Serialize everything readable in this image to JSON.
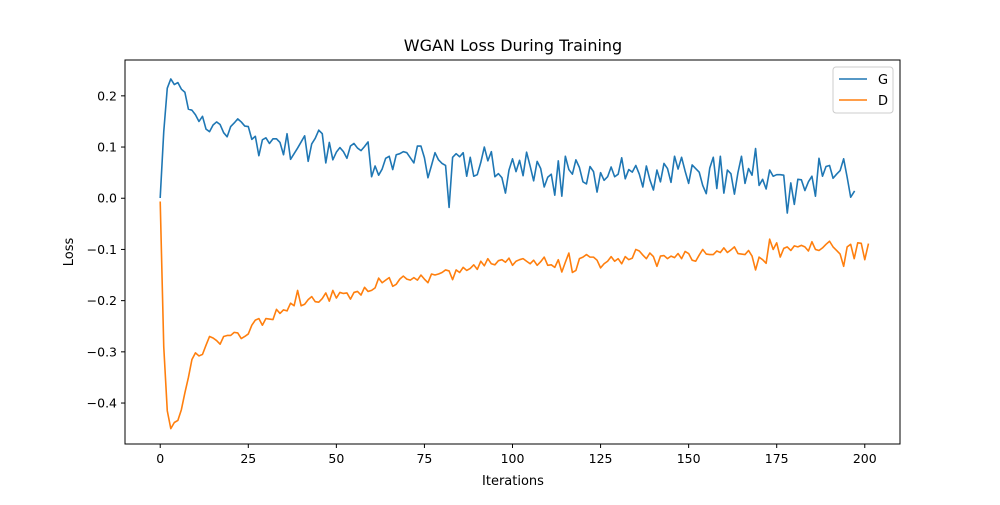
{
  "chart_data": {
    "type": "line",
    "title": "WGAN Loss During Training",
    "xlabel": "Iterations",
    "ylabel": "Loss",
    "xlim": [
      -10,
      210
    ],
    "ylim": [
      -0.48,
      0.27
    ],
    "xticks": [
      0,
      25,
      50,
      75,
      100,
      125,
      150,
      175,
      200
    ],
    "yticks": [
      -0.4,
      -0.3,
      -0.2,
      -0.1,
      0.0,
      0.1,
      0.2
    ],
    "ytick_labels": [
      "−0.4",
      "−0.3",
      "−0.2",
      "−0.1",
      "0.0",
      "0.1",
      "0.2"
    ],
    "grid": false,
    "legend_position": "top-right",
    "x_start": 0,
    "x_step": 1,
    "series": [
      {
        "name": "G",
        "color": "#1f77b4",
        "values": [
          0.002,
          0.13,
          0.215,
          0.233,
          0.222,
          0.226,
          0.213,
          0.207,
          0.174,
          0.172,
          0.163,
          0.15,
          0.16,
          0.135,
          0.13,
          0.143,
          0.149,
          0.144,
          0.128,
          0.12,
          0.14,
          0.147,
          0.155,
          0.149,
          0.141,
          0.14,
          0.115,
          0.121,
          0.083,
          0.114,
          0.118,
          0.107,
          0.116,
          0.116,
          0.109,
          0.085,
          0.126,
          0.076,
          0.087,
          0.098,
          0.11,
          0.122,
          0.072,
          0.106,
          0.117,
          0.133,
          0.126,
          0.069,
          0.109,
          0.075,
          0.09,
          0.099,
          0.091,
          0.078,
          0.102,
          0.107,
          0.098,
          0.093,
          0.101,
          0.11,
          0.042,
          0.063,
          0.045,
          0.057,
          0.078,
          0.082,
          0.056,
          0.085,
          0.087,
          0.091,
          0.089,
          0.079,
          0.069,
          0.102,
          0.102,
          0.079,
          0.04,
          0.064,
          0.089,
          0.075,
          0.068,
          0.064,
          -0.018,
          0.08,
          0.087,
          0.081,
          0.089,
          0.043,
          0.08,
          0.043,
          0.046,
          0.07,
          0.1,
          0.073,
          0.091,
          0.042,
          0.048,
          0.04,
          0.01,
          0.055,
          0.077,
          0.052,
          0.074,
          0.044,
          0.09,
          0.063,
          0.034,
          0.072,
          0.058,
          0.022,
          0.041,
          0.047,
          0.006,
          0.073,
          0.004,
          0.082,
          0.056,
          0.047,
          0.075,
          0.06,
          0.032,
          0.028,
          0.062,
          0.052,
          0.012,
          0.05,
          0.035,
          0.042,
          0.061,
          0.042,
          0.047,
          0.079,
          0.038,
          0.056,
          0.051,
          0.064,
          0.047,
          0.022,
          0.063,
          0.036,
          0.016,
          0.055,
          0.032,
          0.068,
          0.058,
          0.031,
          0.082,
          0.057,
          0.08,
          0.053,
          0.029,
          0.065,
          0.058,
          0.051,
          0.025,
          0.009,
          0.059,
          0.08,
          0.019,
          0.082,
          0.01,
          0.055,
          0.048,
          0.008,
          0.05,
          0.082,
          0.029,
          0.058,
          0.045,
          0.097,
          0.025,
          0.037,
          0.018,
          0.055,
          0.043,
          0.046,
          0.046,
          0.045,
          -0.029,
          0.03,
          -0.012,
          0.037,
          0.036,
          0.015,
          0.032,
          0.043,
          0.004,
          0.078,
          0.043,
          0.062,
          0.064,
          0.039,
          0.047,
          0.054,
          0.077,
          0.041,
          0.002,
          0.013
        ]
      },
      {
        "name": "D",
        "color": "#ff7f0e",
        "values": [
          -0.008,
          -0.29,
          -0.415,
          -0.45,
          -0.438,
          -0.434,
          -0.413,
          -0.38,
          -0.35,
          -0.315,
          -0.302,
          -0.308,
          -0.305,
          -0.287,
          -0.27,
          -0.273,
          -0.278,
          -0.285,
          -0.27,
          -0.268,
          -0.268,
          -0.262,
          -0.263,
          -0.274,
          -0.27,
          -0.265,
          -0.248,
          -0.238,
          -0.235,
          -0.248,
          -0.235,
          -0.236,
          -0.237,
          -0.217,
          -0.225,
          -0.218,
          -0.22,
          -0.205,
          -0.21,
          -0.18,
          -0.21,
          -0.207,
          -0.198,
          -0.192,
          -0.202,
          -0.203,
          -0.196,
          -0.185,
          -0.201,
          -0.18,
          -0.195,
          -0.184,
          -0.186,
          -0.185,
          -0.197,
          -0.184,
          -0.182,
          -0.189,
          -0.174,
          -0.182,
          -0.18,
          -0.175,
          -0.156,
          -0.165,
          -0.16,
          -0.155,
          -0.172,
          -0.168,
          -0.158,
          -0.152,
          -0.158,
          -0.16,
          -0.155,
          -0.16,
          -0.15,
          -0.158,
          -0.165,
          -0.148,
          -0.15,
          -0.148,
          -0.145,
          -0.14,
          -0.142,
          -0.159,
          -0.14,
          -0.145,
          -0.135,
          -0.141,
          -0.137,
          -0.13,
          -0.139,
          -0.123,
          -0.132,
          -0.118,
          -0.128,
          -0.13,
          -0.122,
          -0.12,
          -0.125,
          -0.117,
          -0.131,
          -0.123,
          -0.12,
          -0.118,
          -0.123,
          -0.128,
          -0.121,
          -0.131,
          -0.124,
          -0.115,
          -0.131,
          -0.13,
          -0.135,
          -0.12,
          -0.144,
          -0.125,
          -0.107,
          -0.145,
          -0.141,
          -0.118,
          -0.115,
          -0.11,
          -0.115,
          -0.115,
          -0.121,
          -0.136,
          -0.128,
          -0.123,
          -0.114,
          -0.123,
          -0.118,
          -0.128,
          -0.114,
          -0.12,
          -0.117,
          -0.1,
          -0.103,
          -0.111,
          -0.118,
          -0.107,
          -0.114,
          -0.133,
          -0.113,
          -0.112,
          -0.118,
          -0.113,
          -0.116,
          -0.108,
          -0.118,
          -0.104,
          -0.108,
          -0.121,
          -0.123,
          -0.111,
          -0.1,
          -0.109,
          -0.11,
          -0.11,
          -0.103,
          -0.106,
          -0.097,
          -0.106,
          -0.101,
          -0.095,
          -0.108,
          -0.109,
          -0.11,
          -0.102,
          -0.113,
          -0.14,
          -0.115,
          -0.12,
          -0.127,
          -0.08,
          -0.1,
          -0.087,
          -0.115,
          -0.098,
          -0.095,
          -0.102,
          -0.093,
          -0.095,
          -0.092,
          -0.095,
          -0.103,
          -0.085,
          -0.1,
          -0.102,
          -0.097,
          -0.09,
          -0.084,
          -0.095,
          -0.102,
          -0.109,
          -0.133,
          -0.095,
          -0.09,
          -0.118,
          -0.087,
          -0.088,
          -0.12,
          -0.09
        ]
      }
    ]
  }
}
